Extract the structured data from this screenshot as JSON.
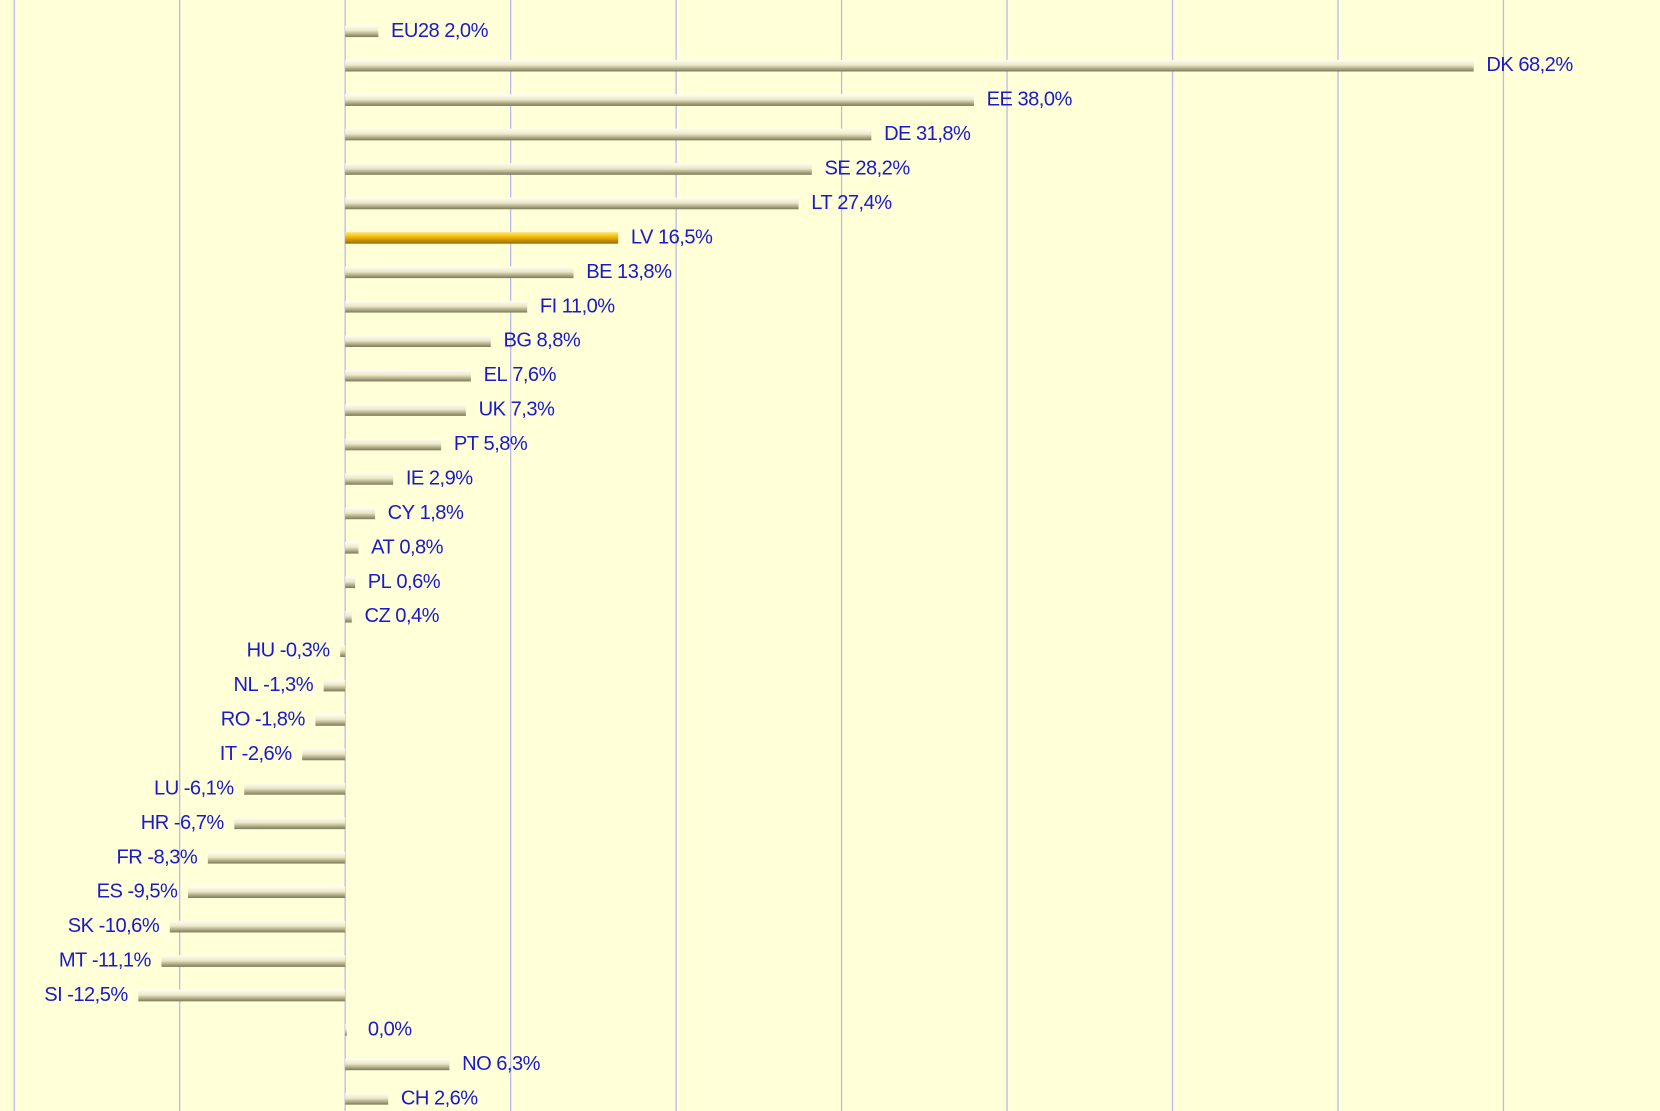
{
  "chart_data": {
    "type": "hbar",
    "categories": [
      "EU28",
      "DK",
      "EE",
      "DE",
      "SE",
      "LT",
      "LV",
      "BE",
      "FI",
      "BG",
      "EL",
      "UK",
      "PT",
      "IE",
      "CY",
      "AT",
      "PL",
      "CZ",
      "HU",
      "NL",
      "RO",
      "IT",
      "LU",
      "HR",
      "FR",
      "ES",
      "SK",
      "MT",
      "SI",
      null,
      "NO",
      "CH"
    ],
    "values": [
      2.0,
      68.2,
      38.0,
      31.8,
      28.2,
      27.4,
      16.5,
      13.8,
      11.0,
      8.8,
      7.6,
      7.3,
      5.8,
      2.9,
      1.8,
      0.8,
      0.6,
      0.4,
      -0.3,
      -1.3,
      -1.8,
      -2.6,
      -6.1,
      -6.7,
      -8.3,
      -9.5,
      -10.6,
      -11.1,
      -12.5,
      0.0,
      6.3,
      2.6
    ],
    "value_labels": [
      "2,0%",
      "68,2%",
      "38,0%",
      "31,8%",
      "28,2%",
      "27,4%",
      "16,5%",
      "13,8%",
      "11,0%",
      "8,8%",
      "7,6%",
      "7,3%",
      "5,8%",
      "2,9%",
      "1,8%",
      "0,8%",
      "0,6%",
      "0,4%",
      "-0,3%",
      "-1,3%",
      "-1,8%",
      "-2,6%",
      "-6,1%",
      "-6,7%",
      "-8,3%",
      "-9,5%",
      "-10,6%",
      "-11,1%",
      "-12,5%",
      "0,0%",
      "6,3%",
      "2,6%"
    ],
    "colors": [
      "beige",
      "beige",
      "beige",
      "beige",
      "beige",
      "beige",
      "gold",
      "beige",
      "beige",
      "beige",
      "beige",
      "beige",
      "beige",
      "beige",
      "beige",
      "beige",
      "beige",
      "beige",
      "beige",
      "beige",
      "beige",
      "beige",
      "beige",
      "beige",
      "beige",
      "beige",
      "beige",
      "beige",
      "beige",
      "beige",
      "beige",
      "beige"
    ],
    "xlim": [
      -20.86,
      79.46
    ],
    "xticks": [
      -20,
      -10,
      0,
      10,
      20,
      30,
      40,
      50,
      60,
      70
    ],
    "grid": true
  }
}
